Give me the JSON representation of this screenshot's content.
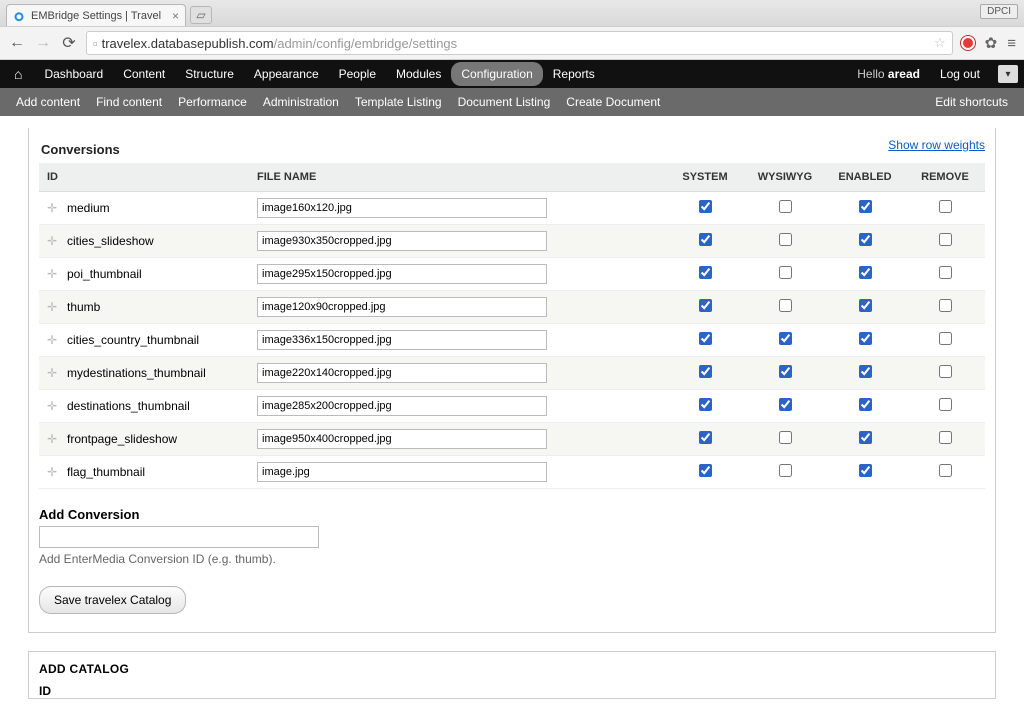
{
  "browser": {
    "tab_title": "EMBridge Settings | Travel",
    "dpci_badge": "DPCI",
    "url_host": "travelex.databasepublish.com",
    "url_path": "/admin/config/embridge/settings"
  },
  "toolbar": {
    "items": [
      "Dashboard",
      "Content",
      "Structure",
      "Appearance",
      "People",
      "Modules",
      "Configuration",
      "Reports"
    ],
    "active_index": 6,
    "hello_prefix": "Hello ",
    "username": "aread",
    "logout": "Log out"
  },
  "shortcuts": {
    "items": [
      "Add content",
      "Find content",
      "Performance",
      "Administration",
      "Template Listing",
      "Document Listing",
      "Create Document"
    ],
    "edit": "Edit shortcuts"
  },
  "section_title": "Conversions",
  "show_weights": "Show row weights",
  "columns": {
    "id": "ID",
    "file_name": "FILE NAME",
    "system": "SYSTEM",
    "wysiwyg": "WYSIWYG",
    "enabled": "ENABLED",
    "remove": "REMOVE"
  },
  "rows": [
    {
      "id": "medium",
      "file": "image160x120.jpg",
      "system": true,
      "wysiwyg": false,
      "enabled": true,
      "remove": false
    },
    {
      "id": "cities_slideshow",
      "file": "image930x350cropped.jpg",
      "system": true,
      "wysiwyg": false,
      "enabled": true,
      "remove": false
    },
    {
      "id": "poi_thumbnail",
      "file": "image295x150cropped.jpg",
      "system": true,
      "wysiwyg": false,
      "enabled": true,
      "remove": false
    },
    {
      "id": "thumb",
      "file": "image120x90cropped.jpg",
      "system": true,
      "wysiwyg": false,
      "enabled": true,
      "remove": false
    },
    {
      "id": "cities_country_thumbnail",
      "file": "image336x150cropped.jpg",
      "system": true,
      "wysiwyg": true,
      "enabled": true,
      "remove": false
    },
    {
      "id": "mydestinations_thumbnail",
      "file": "image220x140cropped.jpg",
      "system": true,
      "wysiwyg": true,
      "enabled": true,
      "remove": false
    },
    {
      "id": "destinations_thumbnail",
      "file": "image285x200cropped.jpg",
      "system": true,
      "wysiwyg": true,
      "enabled": true,
      "remove": false
    },
    {
      "id": "frontpage_slideshow",
      "file": "image950x400cropped.jpg",
      "system": true,
      "wysiwyg": false,
      "enabled": true,
      "remove": false
    },
    {
      "id": "flag_thumbnail",
      "file": "image.jpg",
      "system": true,
      "wysiwyg": false,
      "enabled": true,
      "remove": false
    }
  ],
  "add_conversion": {
    "label": "Add Conversion",
    "value": "",
    "help": "Add EnterMedia Conversion ID (e.g. thumb)."
  },
  "save_button": "Save travelex Catalog",
  "add_catalog": {
    "title": "ADD CATALOG",
    "id_label": "ID"
  },
  "colors": {
    "link": "#0a5bcc",
    "checkbox_accent": "#2a64c7"
  }
}
